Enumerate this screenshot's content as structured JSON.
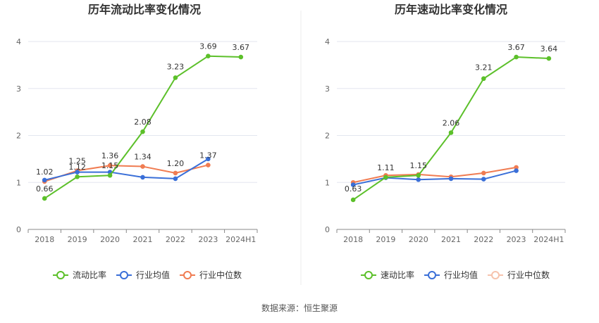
{
  "source_label": "数据来源：恒生聚源",
  "chart_data": [
    {
      "type": "line",
      "title": "历年流动比率变化情况",
      "categories": [
        "2018",
        "2019",
        "2020",
        "2021",
        "2022",
        "2023",
        "2024H1"
      ],
      "ylim": [
        0,
        4
      ],
      "yticks": [
        0,
        1,
        2,
        3,
        4
      ],
      "grid": true,
      "legend_position": "bottom",
      "series": [
        {
          "name": "流动比率",
          "color": "#5cc02a",
          "values": [
            0.66,
            1.12,
            1.15,
            2.08,
            3.23,
            3.69,
            3.67
          ],
          "labels": [
            "0.66",
            "1.12",
            "1.15",
            "2.08",
            "3.23",
            "3.69",
            "3.67"
          ],
          "legend_active": true
        },
        {
          "name": "行业均值",
          "color": "#3a6fd8",
          "values": [
            1.05,
            1.22,
            1.22,
            1.11,
            1.08,
            1.5,
            null
          ],
          "labels": [
            null,
            null,
            null,
            null,
            null,
            null,
            null
          ],
          "legend_active": true
        },
        {
          "name": "行业中位数",
          "color": "#f07c52",
          "values": [
            1.02,
            1.25,
            1.36,
            1.34,
            1.2,
            1.37,
            null
          ],
          "labels": [
            "1.02",
            "1.25",
            "1.36",
            "1.34",
            "1.20",
            "1.37",
            null
          ],
          "legend_active": true
        }
      ]
    },
    {
      "type": "line",
      "title": "历年速动比率变化情况",
      "categories": [
        "2018",
        "2019",
        "2020",
        "2021",
        "2022",
        "2023",
        "2024H1"
      ],
      "ylim": [
        0,
        4
      ],
      "yticks": [
        0,
        1,
        2,
        3,
        4
      ],
      "grid": true,
      "legend_position": "bottom",
      "series": [
        {
          "name": "速动比率",
          "color": "#5cc02a",
          "values": [
            0.63,
            1.11,
            1.15,
            2.06,
            3.21,
            3.67,
            3.64
          ],
          "labels": [
            "0.63",
            "1.11",
            "1.15",
            "2.06",
            "3.21",
            "3.67",
            "3.64"
          ],
          "legend_active": true
        },
        {
          "name": "行业均值",
          "color": "#3a6fd8",
          "values": [
            0.95,
            1.1,
            1.06,
            1.08,
            1.07,
            1.25,
            null
          ],
          "labels": [
            null,
            null,
            null,
            null,
            null,
            null,
            null
          ],
          "legend_active": true
        },
        {
          "name": "行业中位数",
          "color": "#f07c52",
          "values": [
            1.0,
            1.15,
            1.17,
            1.12,
            1.2,
            1.32,
            null
          ],
          "labels": [
            null,
            null,
            null,
            null,
            null,
            null,
            null
          ],
          "legend_active": false
        }
      ]
    }
  ]
}
